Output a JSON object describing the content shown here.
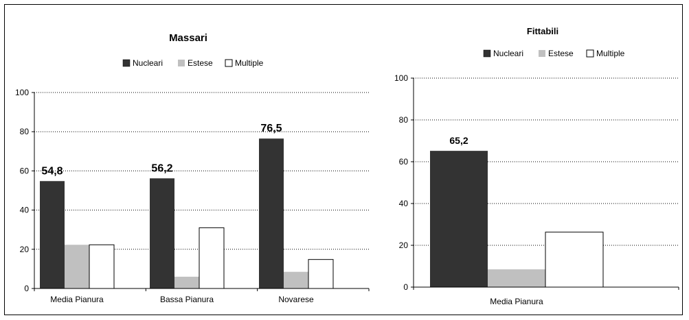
{
  "colors": {
    "nucleari": "#333333",
    "estese": "#c0c0c0",
    "multiple": "#ffffff",
    "border": "#000000",
    "grid": "#000000"
  },
  "chart_data": [
    {
      "type": "bar",
      "title": "Massari",
      "categories": [
        "Media Pianura",
        "Bassa Pianura",
        "Novarese"
      ],
      "series": [
        {
          "name": "Nucleari",
          "values": [
            54.8,
            56.2,
            76.5
          ]
        },
        {
          "name": "Estese",
          "values": [
            22.3,
            6.0,
            8.5
          ]
        },
        {
          "name": "Multiple",
          "values": [
            22.3,
            31.0,
            14.8
          ]
        }
      ],
      "data_labels": [
        "54,8",
        "56,2",
        "76,5"
      ],
      "ylim": [
        0,
        100
      ],
      "yticks": [
        "0",
        "20",
        "40",
        "60",
        "80",
        "100"
      ],
      "xlabel": "",
      "ylabel": "",
      "grid": true,
      "legend_position": "top"
    },
    {
      "type": "bar",
      "title": "Fittabili",
      "categories": [
        "Media Pianura"
      ],
      "series": [
        {
          "name": "Nucleari",
          "values": [
            65.2
          ]
        },
        {
          "name": "Estese",
          "values": [
            8.5
          ]
        },
        {
          "name": "Multiple",
          "values": [
            26.3
          ]
        }
      ],
      "data_labels": [
        "65,2"
      ],
      "ylim": [
        0,
        100
      ],
      "yticks": [
        "0",
        "20",
        "40",
        "60",
        "80",
        "100"
      ],
      "xlabel": "",
      "ylabel": "",
      "grid": true,
      "legend_position": "top"
    }
  ]
}
